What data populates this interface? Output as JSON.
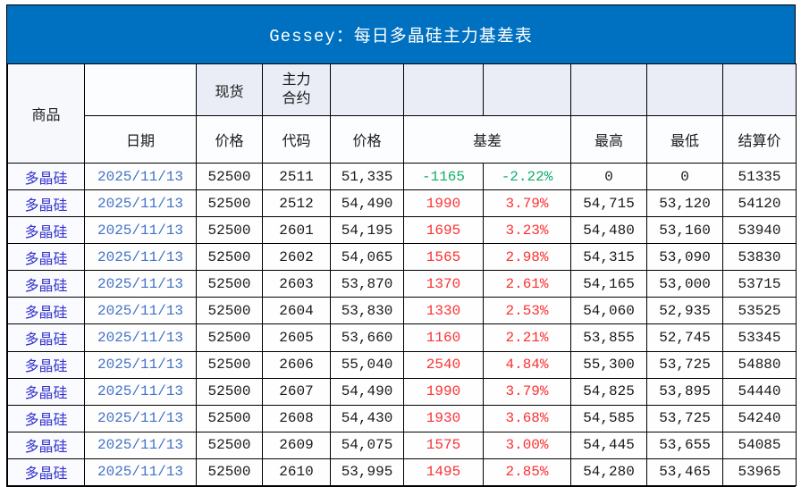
{
  "title": "Gessey：每日多晶硅主力基差表",
  "colors": {
    "title_bg": "#0070C0",
    "title_text": "#FFFFFF",
    "header_shade": "#EAEDF5",
    "commodity_text": "#3333CC",
    "date_text": "#4472C4",
    "basis_positive_red": "#FA3232",
    "basis_negative_green": "#12AE6B",
    "number_text": "#1A1A1A"
  },
  "table": {
    "header": {
      "commodity": "商品",
      "date": "日期",
      "spot_group": "现货",
      "main_contract_group": "主力合约",
      "price_spot": "价格",
      "code": "代码",
      "price_main": "价格",
      "basis": "基差",
      "high": "最高",
      "low": "最低",
      "settle": "结算价"
    }
  },
  "chart_data": {
    "type": "table",
    "title": "Gessey：每日多晶硅主力基差表",
    "columns": [
      "商品",
      "日期",
      "现货价格",
      "主力合约代码",
      "主力合约价格",
      "基差",
      "基差%",
      "最高",
      "最低",
      "结算价"
    ],
    "rows": [
      [
        "多晶硅",
        "2025/11/13",
        "52500",
        "2511",
        "51,335",
        "-1165",
        "-2.22%",
        "0",
        "0",
        "51335"
      ],
      [
        "多晶硅",
        "2025/11/13",
        "52500",
        "2512",
        "54,490",
        "1990",
        "3.79%",
        "54,715",
        "53,120",
        "54120"
      ],
      [
        "多晶硅",
        "2025/11/13",
        "52500",
        "2601",
        "54,195",
        "1695",
        "3.23%",
        "54,480",
        "53,160",
        "53940"
      ],
      [
        "多晶硅",
        "2025/11/13",
        "52500",
        "2602",
        "54,065",
        "1565",
        "2.98%",
        "54,315",
        "53,090",
        "53830"
      ],
      [
        "多晶硅",
        "2025/11/13",
        "52500",
        "2603",
        "53,870",
        "1370",
        "2.61%",
        "54,165",
        "53,000",
        "53715"
      ],
      [
        "多晶硅",
        "2025/11/13",
        "52500",
        "2604",
        "53,830",
        "1330",
        "2.53%",
        "54,060",
        "52,935",
        "53525"
      ],
      [
        "多晶硅",
        "2025/11/13",
        "52500",
        "2605",
        "53,660",
        "1160",
        "2.21%",
        "53,855",
        "52,745",
        "53345"
      ],
      [
        "多晶硅",
        "2025/11/13",
        "52500",
        "2606",
        "55,040",
        "2540",
        "4.84%",
        "55,300",
        "53,725",
        "54880"
      ],
      [
        "多晶硅",
        "2025/11/13",
        "52500",
        "2607",
        "54,490",
        "1990",
        "3.79%",
        "54,825",
        "53,895",
        "54440"
      ],
      [
        "多晶硅",
        "2025/11/13",
        "52500",
        "2608",
        "54,430",
        "1930",
        "3.68%",
        "54,585",
        "53,725",
        "54240"
      ],
      [
        "多晶硅",
        "2025/11/13",
        "52500",
        "2609",
        "54,075",
        "1575",
        "3.00%",
        "54,445",
        "53,655",
        "54085"
      ],
      [
        "多晶硅",
        "2025/11/13",
        "52500",
        "2610",
        "53,995",
        "1495",
        "2.85%",
        "54,280",
        "53,465",
        "53965"
      ]
    ]
  }
}
